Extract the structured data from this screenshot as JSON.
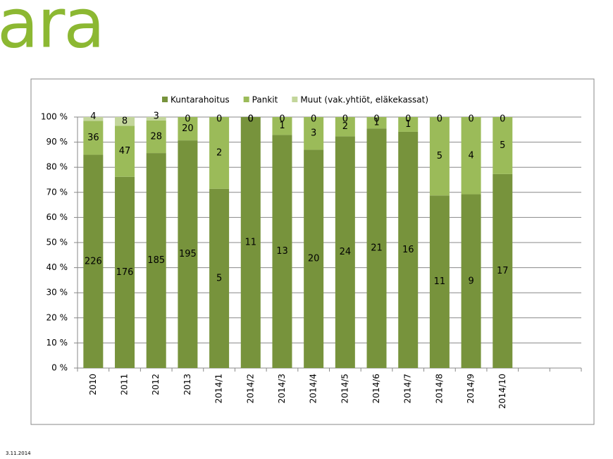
{
  "logo": "ara",
  "footer": "3.11.2014",
  "chart_data": {
    "type": "bar",
    "stacked": "percent",
    "categories": [
      "2010",
      "2011",
      "2012",
      "2013",
      "2014/1",
      "2014/2",
      "2014/3",
      "2014/4",
      "2014/5",
      "2014/6",
      "2014/7",
      "2014/8",
      "2014/9",
      "2014/10",
      null,
      null
    ],
    "series": [
      {
        "name": "Kuntarahoitus",
        "color": "#77933c",
        "values": [
          226,
          176,
          185,
          195,
          5,
          11,
          13,
          20,
          24,
          21,
          16,
          11,
          9,
          17,
          null,
          null
        ]
      },
      {
        "name": "Pankit",
        "color": "#9bbb59",
        "values": [
          36,
          47,
          28,
          20,
          2,
          0,
          1,
          3,
          2,
          1,
          1,
          5,
          4,
          5,
          null,
          null
        ]
      },
      {
        "name": "Muut (vak.yhtiöt, eläkekassat)",
        "color": "#c3d69b",
        "values": [
          4,
          8,
          3,
          0,
          0,
          0,
          0,
          0,
          0,
          0,
          0,
          0,
          0,
          0,
          null,
          null
        ]
      }
    ],
    "ylim": [
      0,
      100
    ],
    "yticks": [
      {
        "value": 0,
        "label": "0 %"
      },
      {
        "value": 10,
        "label": "10 %"
      },
      {
        "value": 20,
        "label": "20 %"
      },
      {
        "value": 30,
        "label": "30 %"
      },
      {
        "value": 40,
        "label": "40 %"
      },
      {
        "value": 50,
        "label": "50 %"
      },
      {
        "value": 60,
        "label": "60 %"
      },
      {
        "value": 70,
        "label": "70 %"
      },
      {
        "value": 80,
        "label": "80 %"
      },
      {
        "value": 90,
        "label": "90 %"
      },
      {
        "value": 100,
        "label": "100 %"
      }
    ],
    "grid": true,
    "legend": "top"
  }
}
